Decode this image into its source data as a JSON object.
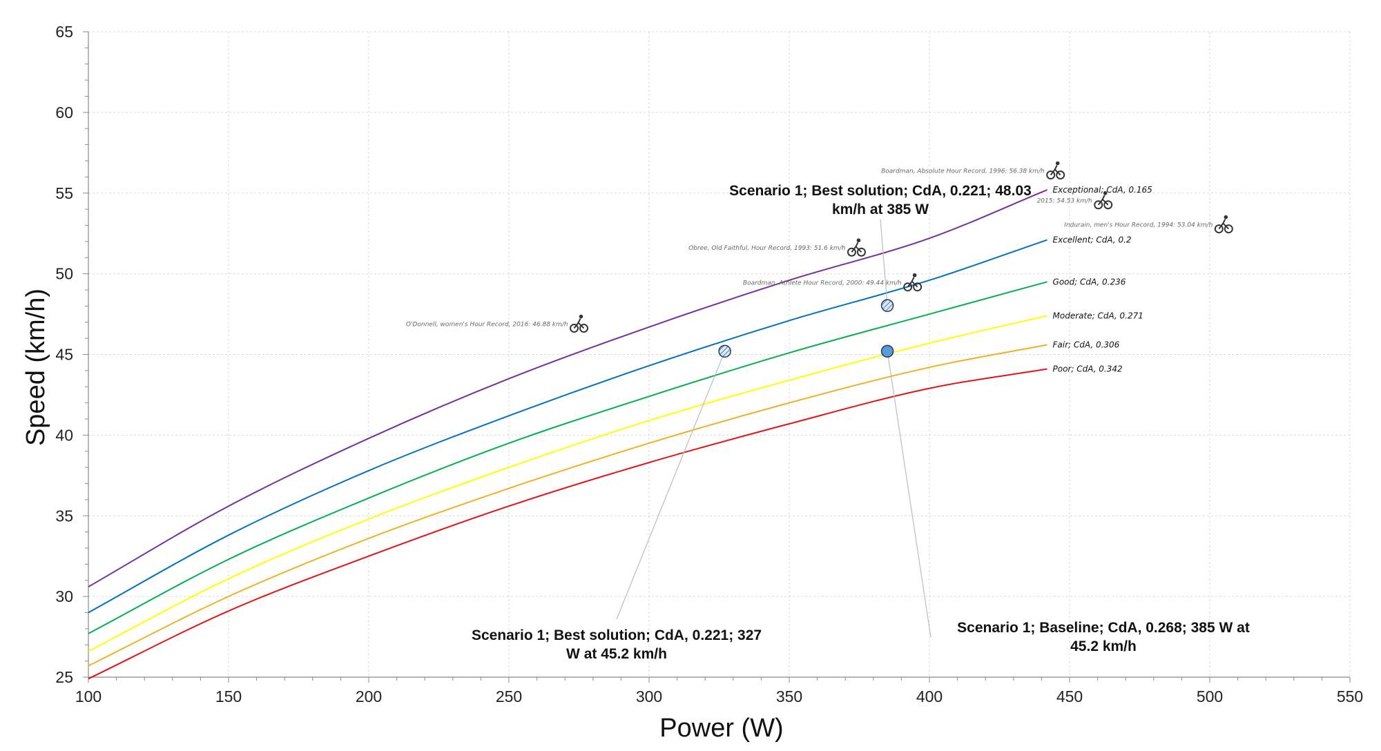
{
  "chart_data": {
    "type": "line",
    "xlabel": "Power (W)",
    "ylabel": "Speed (km/h)",
    "xlim": [
      100,
      550
    ],
    "ylim": [
      25,
      65
    ],
    "xticks": [
      100,
      150,
      200,
      250,
      300,
      350,
      400,
      450,
      500,
      550
    ],
    "yticks": [
      25,
      30,
      35,
      40,
      45,
      50,
      55,
      60,
      65
    ],
    "grid": true,
    "series": [
      {
        "name": "Exceptional; CdA, 0.165",
        "color": "#7030a0",
        "x": [
          100,
          150,
          200,
          250,
          300,
          350,
          400,
          442
        ],
        "y": [
          30.6,
          35.6,
          39.8,
          43.5,
          46.7,
          49.6,
          52.2,
          55.2
        ]
      },
      {
        "name": "Excellent; CdA, 0.2",
        "color": "#0070c0",
        "x": [
          100,
          150,
          200,
          250,
          300,
          350,
          400,
          442
        ],
        "y": [
          29.0,
          33.8,
          37.8,
          41.2,
          44.3,
          47.1,
          49.6,
          52.1
        ]
      },
      {
        "name": "Good; CdA, 0.236",
        "color": "#00b050",
        "x": [
          100,
          150,
          200,
          250,
          300,
          350,
          400,
          442
        ],
        "y": [
          27.7,
          32.3,
          36.1,
          39.5,
          42.4,
          45.1,
          47.5,
          49.5
        ]
      },
      {
        "name": "Moderate; CdA, 0.271",
        "color": "#ffff00",
        "x": [
          100,
          150,
          200,
          250,
          300,
          350,
          400,
          442
        ],
        "y": [
          26.6,
          31.1,
          34.8,
          38.0,
          40.9,
          43.4,
          45.7,
          47.4
        ]
      },
      {
        "name": "Fair; CdA, 0.306",
        "color": "#f0b020",
        "x": [
          100,
          150,
          200,
          250,
          300,
          350,
          400,
          442
        ],
        "y": [
          25.7,
          30.0,
          33.6,
          36.7,
          39.5,
          42.0,
          44.2,
          45.6
        ]
      },
      {
        "name": "Poor; CdA, 0.342",
        "color": "#e81010",
        "x": [
          100,
          150,
          200,
          250,
          300,
          350,
          400,
          442
        ],
        "y": [
          24.9,
          29.1,
          32.5,
          35.6,
          38.3,
          40.7,
          42.9,
          44.1
        ]
      }
    ],
    "records": [
      {
        "label": "Boardman, Absolute Hour Record, 1996: 56.38 km/h",
        "x": 445,
        "y": 56.38
      },
      {
        "label": "2015: 54.53 km/h",
        "x": 462,
        "y": 54.53
      },
      {
        "label": "Indurain, men's Hour Record, 1994: 53.04 km/h",
        "x": 505,
        "y": 53.04
      },
      {
        "label": "Obree, Old Faithful, Hour Record, 1993: 51.6 km/h",
        "x": 374,
        "y": 51.6
      },
      {
        "label": "Boardman, Athlete Hour Record, 2000: 49.44 km/h",
        "x": 394,
        "y": 49.44
      },
      {
        "label": "O'Donnell, women's Hour Record, 2016: 46.88 km/h",
        "x": 275,
        "y": 46.88
      }
    ],
    "points": [
      {
        "label": "Scenario 1; Best solution; CdA, 0.221; 48.03 km/h at 385 W",
        "line1": "Scenario 1; Best solution; CdA, 0.221; 48.03",
        "line2": "km/h at 385 W",
        "x": 385,
        "y": 48.03,
        "style": "hatched"
      },
      {
        "label": "Scenario 1; Best solution; CdA, 0.221; 327 W at 45.2 km/h",
        "line1": "Scenario 1; Best solution; CdA, 0.221; 327",
        "line2": "W at 45.2 km/h",
        "x": 327,
        "y": 45.2,
        "style": "hatched"
      },
      {
        "label": "Scenario 1; Baseline; CdA, 0.268; 385 W at 45.2 km/h",
        "line1": "Scenario 1; Baseline; CdA, 0.268; 385 W at",
        "line2": "45.2 km/h",
        "x": 385,
        "y": 45.2,
        "style": "solid"
      }
    ]
  }
}
